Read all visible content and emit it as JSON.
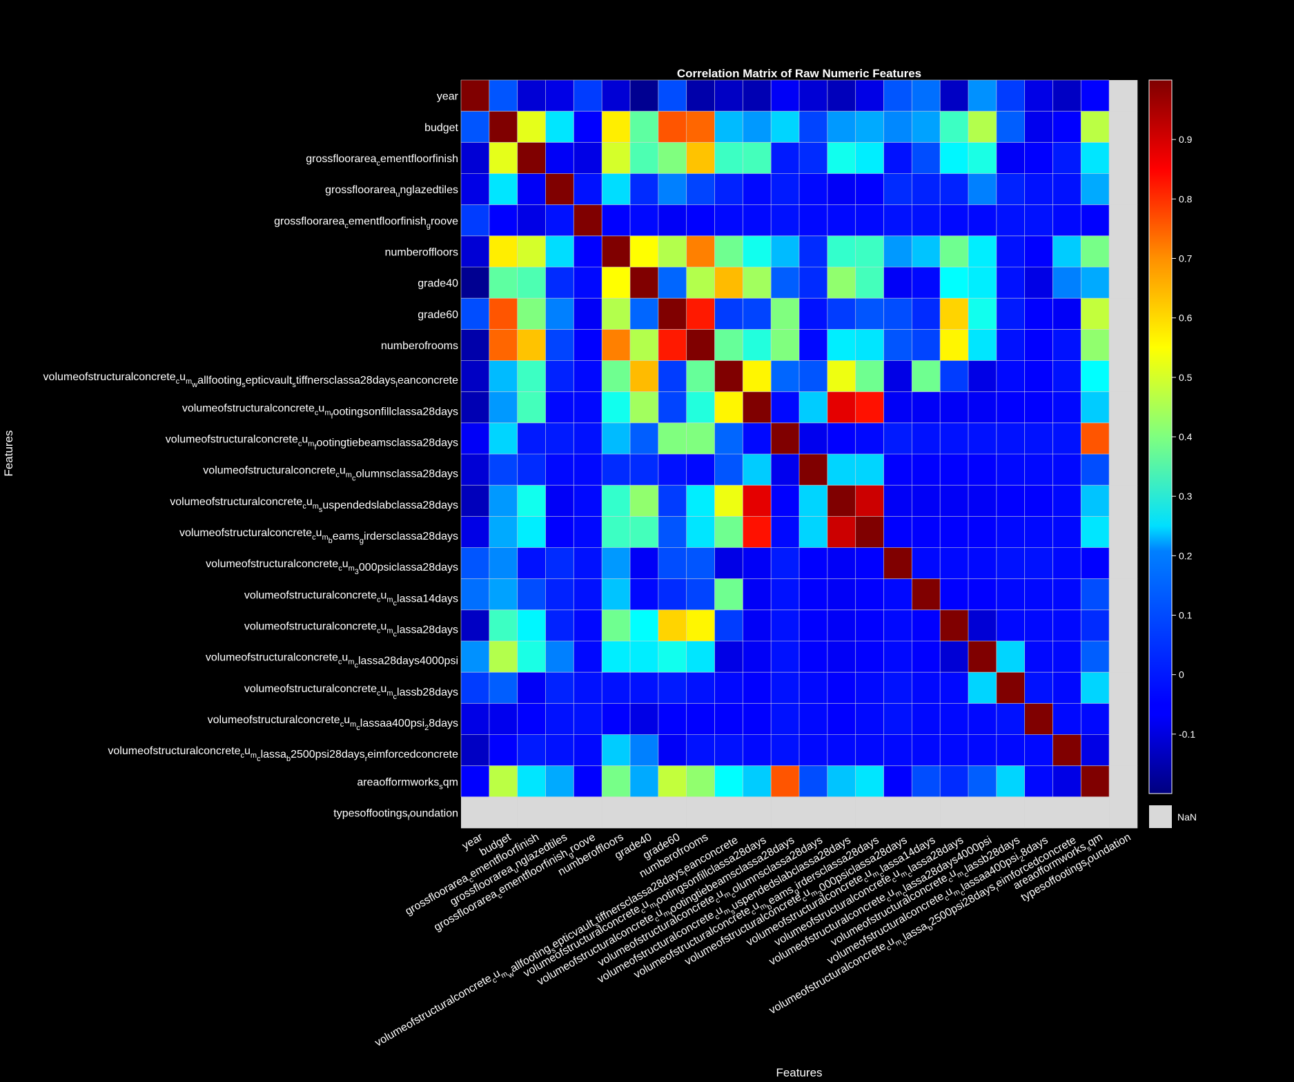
{
  "chart_data": {
    "type": "heatmap",
    "title": "Correlation Matrix of Raw Numeric Features",
    "xlabel": "Features",
    "ylabel": "Features",
    "features": [
      "year",
      "budget",
      "grossfloorarea_cementfloorfinish",
      "grossfloorarea_unglazedtiles",
      "grossfloorarea_cementfloorfinish_groove",
      "numberoffloors",
      "grade40",
      "grade60",
      "numberofrooms",
      "volumeofstructuralconcrete_cu_m_wallfooting_septicvault_stiffnersclassa28days_leanconcrete",
      "volumeofstructuralconcrete_cu_m_footingsonfillclassa28days",
      "volumeofstructuralconcrete_cu_m_footingtiebeamsclassa28days",
      "volumeofstructuralconcrete_cu_m_columnsclassa28days",
      "volumeofstructuralconcrete_cu_m_suspendedslabclassa28days",
      "volumeofstructuralconcrete_cu_m_beams_girdersclassa28days",
      "volumeofstructuralconcrete_cu_m_3000psiclassa28days",
      "volumeofstructuralconcrete_cu_m_classa14days",
      "volumeofstructuralconcrete_cu_m_classa28days",
      "volumeofstructuralconcrete_cu_m_classa28days4000psi",
      "volumeofstructuralconcrete_cu_m_classb28days",
      "volumeofstructuralconcrete_cu_m_classaa400psi_28days",
      "volumeofstructuralconcrete_cu_m_classa_b2500psi28days_reimforcedconcrete",
      "areaofformworks_sqm",
      "typesoffootings_foundation"
    ],
    "matrix": [
      [
        1.0,
        0.05,
        -0.1,
        -0.08,
        0.02,
        -0.1,
        -0.18,
        0.04,
        -0.15,
        -0.12,
        -0.14,
        -0.06,
        -0.1,
        -0.13,
        -0.08,
        0.05,
        0.08,
        -0.12,
        0.12,
        0.02,
        -0.08,
        -0.12,
        -0.05,
        null
      ],
      [
        0.05,
        1.0,
        0.52,
        0.22,
        -0.05,
        0.57,
        0.36,
        0.75,
        0.73,
        0.17,
        0.13,
        0.2,
        0.03,
        0.13,
        0.15,
        0.11,
        0.14,
        0.32,
        0.46,
        0.06,
        -0.07,
        -0.05,
        0.47,
        null
      ],
      [
        -0.1,
        0.52,
        1.0,
        -0.06,
        -0.08,
        0.5,
        0.34,
        0.4,
        0.62,
        0.32,
        0.33,
        -0.02,
        0.0,
        0.27,
        0.23,
        -0.03,
        0.04,
        0.24,
        0.28,
        -0.06,
        -0.05,
        -0.02,
        0.22,
        null
      ],
      [
        -0.08,
        0.22,
        -0.06,
        1.0,
        -0.03,
        0.21,
        0.0,
        0.1,
        0.03,
        -0.01,
        -0.04,
        -0.02,
        -0.04,
        -0.06,
        -0.05,
        0.0,
        -0.01,
        -0.01,
        0.1,
        -0.01,
        -0.03,
        -0.03,
        0.15,
        null
      ],
      [
        0.02,
        -0.05,
        -0.08,
        -0.03,
        1.0,
        -0.05,
        -0.04,
        -0.06,
        -0.05,
        -0.04,
        -0.04,
        -0.03,
        -0.04,
        -0.04,
        -0.04,
        -0.03,
        -0.03,
        -0.04,
        -0.04,
        -0.03,
        -0.03,
        -0.04,
        -0.05,
        null
      ],
      [
        -0.1,
        0.57,
        0.5,
        0.21,
        -0.05,
        1.0,
        0.55,
        0.46,
        0.7,
        0.38,
        0.27,
        0.17,
        0.0,
        0.31,
        0.32,
        0.13,
        0.18,
        0.38,
        0.23,
        -0.03,
        -0.05,
        0.19,
        0.39,
        null
      ],
      [
        -0.18,
        0.36,
        0.34,
        0.0,
        -0.04,
        0.55,
        1.0,
        0.07,
        0.46,
        0.63,
        0.44,
        0.06,
        0.0,
        0.42,
        0.33,
        -0.06,
        -0.04,
        0.25,
        0.23,
        -0.03,
        -0.08,
        0.1,
        0.15,
        null
      ],
      [
        0.04,
        0.75,
        0.4,
        0.1,
        -0.06,
        0.46,
        0.07,
        1.0,
        0.82,
        0.02,
        0.03,
        0.4,
        -0.03,
        0.02,
        0.05,
        0.04,
        0.0,
        0.6,
        0.27,
        -0.02,
        -0.05,
        -0.06,
        0.48,
        null
      ],
      [
        -0.15,
        0.73,
        0.62,
        0.03,
        -0.05,
        0.7,
        0.46,
        0.82,
        1.0,
        0.37,
        0.29,
        0.4,
        -0.04,
        0.23,
        0.22,
        0.05,
        0.03,
        0.56,
        0.22,
        -0.03,
        -0.05,
        -0.03,
        0.42,
        null
      ],
      [
        -0.12,
        0.17,
        0.32,
        -0.01,
        -0.04,
        0.38,
        0.63,
        0.02,
        0.37,
        1.0,
        0.56,
        0.07,
        0.05,
        0.53,
        0.38,
        -0.08,
        0.38,
        0.02,
        -0.08,
        -0.04,
        -0.05,
        -0.03,
        0.25,
        null
      ],
      [
        -0.14,
        0.13,
        0.33,
        -0.04,
        -0.04,
        0.27,
        0.44,
        0.03,
        0.29,
        0.56,
        1.0,
        -0.04,
        0.19,
        0.88,
        0.83,
        -0.06,
        -0.06,
        -0.06,
        -0.06,
        -0.05,
        -0.05,
        -0.04,
        0.19,
        null
      ],
      [
        -0.06,
        0.2,
        -0.02,
        -0.02,
        -0.03,
        0.17,
        0.06,
        0.4,
        0.4,
        0.07,
        -0.04,
        1.0,
        -0.07,
        -0.05,
        -0.04,
        -0.02,
        -0.03,
        -0.03,
        -0.03,
        -0.03,
        -0.03,
        -0.03,
        0.75,
        null
      ],
      [
        -0.1,
        0.03,
        0.0,
        -0.04,
        -0.04,
        0.0,
        0.0,
        -0.03,
        -0.04,
        0.05,
        0.19,
        -0.07,
        1.0,
        0.2,
        0.2,
        -0.05,
        -0.05,
        -0.05,
        -0.05,
        -0.04,
        -0.04,
        -0.04,
        0.04,
        null
      ],
      [
        -0.13,
        0.13,
        0.27,
        -0.06,
        -0.04,
        0.31,
        0.42,
        0.02,
        0.23,
        0.53,
        0.88,
        -0.05,
        0.2,
        1.0,
        0.91,
        -0.06,
        -0.06,
        -0.06,
        -0.06,
        -0.05,
        -0.05,
        -0.04,
        0.18,
        null
      ],
      [
        -0.08,
        0.15,
        0.23,
        -0.05,
        -0.04,
        0.32,
        0.33,
        0.05,
        0.22,
        0.38,
        0.83,
        -0.04,
        0.2,
        0.91,
        1.0,
        -0.05,
        -0.05,
        -0.05,
        -0.05,
        -0.04,
        -0.04,
        -0.04,
        0.22,
        null
      ],
      [
        0.05,
        0.11,
        -0.03,
        0.0,
        -0.03,
        0.13,
        -0.06,
        0.04,
        0.05,
        -0.08,
        -0.06,
        -0.02,
        -0.05,
        -0.06,
        -0.05,
        1.0,
        -0.04,
        -0.04,
        -0.04,
        -0.03,
        -0.03,
        -0.04,
        -0.05,
        null
      ],
      [
        0.08,
        0.14,
        0.04,
        -0.01,
        -0.03,
        0.18,
        -0.04,
        0.0,
        0.03,
        0.38,
        -0.06,
        -0.03,
        -0.05,
        -0.06,
        -0.05,
        -0.04,
        1.0,
        -0.05,
        -0.05,
        -0.04,
        -0.04,
        -0.04,
        0.04,
        null
      ],
      [
        -0.12,
        0.32,
        0.24,
        -0.01,
        -0.04,
        0.38,
        0.25,
        0.6,
        0.56,
        0.02,
        -0.06,
        -0.03,
        -0.05,
        -0.06,
        -0.05,
        -0.04,
        -0.05,
        1.0,
        -0.1,
        -0.04,
        -0.04,
        -0.04,
        0.0,
        null
      ],
      [
        0.12,
        0.46,
        0.28,
        0.1,
        -0.04,
        0.23,
        0.23,
        0.27,
        0.22,
        -0.08,
        -0.06,
        -0.03,
        -0.05,
        -0.06,
        -0.05,
        -0.04,
        -0.05,
        -0.1,
        1.0,
        0.2,
        -0.04,
        -0.04,
        0.06,
        null
      ],
      [
        0.02,
        0.06,
        -0.06,
        -0.01,
        -0.03,
        -0.03,
        -0.03,
        -0.02,
        -0.03,
        -0.04,
        -0.05,
        -0.03,
        -0.04,
        -0.05,
        -0.04,
        -0.03,
        -0.04,
        -0.04,
        0.2,
        1.0,
        -0.03,
        -0.04,
        0.2,
        null
      ],
      [
        -0.08,
        -0.07,
        -0.05,
        -0.03,
        -0.03,
        -0.05,
        -0.08,
        -0.05,
        -0.05,
        -0.05,
        -0.05,
        -0.03,
        -0.04,
        -0.05,
        -0.04,
        -0.03,
        -0.04,
        -0.04,
        -0.04,
        -0.03,
        1.0,
        -0.04,
        -0.04,
        null
      ],
      [
        -0.12,
        -0.05,
        -0.02,
        -0.03,
        -0.04,
        0.19,
        0.1,
        -0.06,
        -0.03,
        -0.03,
        -0.04,
        -0.03,
        -0.04,
        -0.04,
        -0.04,
        -0.04,
        -0.04,
        -0.04,
        -0.04,
        -0.04,
        -0.04,
        1.0,
        -0.08,
        null
      ],
      [
        -0.05,
        0.47,
        0.22,
        0.15,
        -0.05,
        0.39,
        0.15,
        0.48,
        0.42,
        0.25,
        0.19,
        0.75,
        0.04,
        0.18,
        0.22,
        -0.05,
        0.04,
        0.0,
        0.06,
        0.2,
        -0.04,
        -0.08,
        1.0,
        null
      ],
      [
        null,
        null,
        null,
        null,
        null,
        null,
        null,
        null,
        null,
        null,
        null,
        null,
        null,
        null,
        null,
        null,
        null,
        null,
        null,
        null,
        null,
        null,
        null,
        null
      ]
    ],
    "colorbar": {
      "colormap": "jet",
      "range": [
        -0.2,
        1.0
      ],
      "ticks": [
        -0.1,
        0,
        0.1,
        0.2,
        0.3,
        0.4,
        0.5,
        0.6,
        0.7,
        0.8,
        0.9
      ],
      "tick_labels": [
        "-0.1",
        "0",
        "0.1",
        "0.2",
        "0.3",
        "0.4",
        "0.5",
        "0.6",
        "0.7",
        "0.8",
        "0.9"
      ],
      "nan_label": "NaN",
      "nan_color": "#d9d9d9"
    },
    "grid": true,
    "legend": "right colorbar"
  }
}
